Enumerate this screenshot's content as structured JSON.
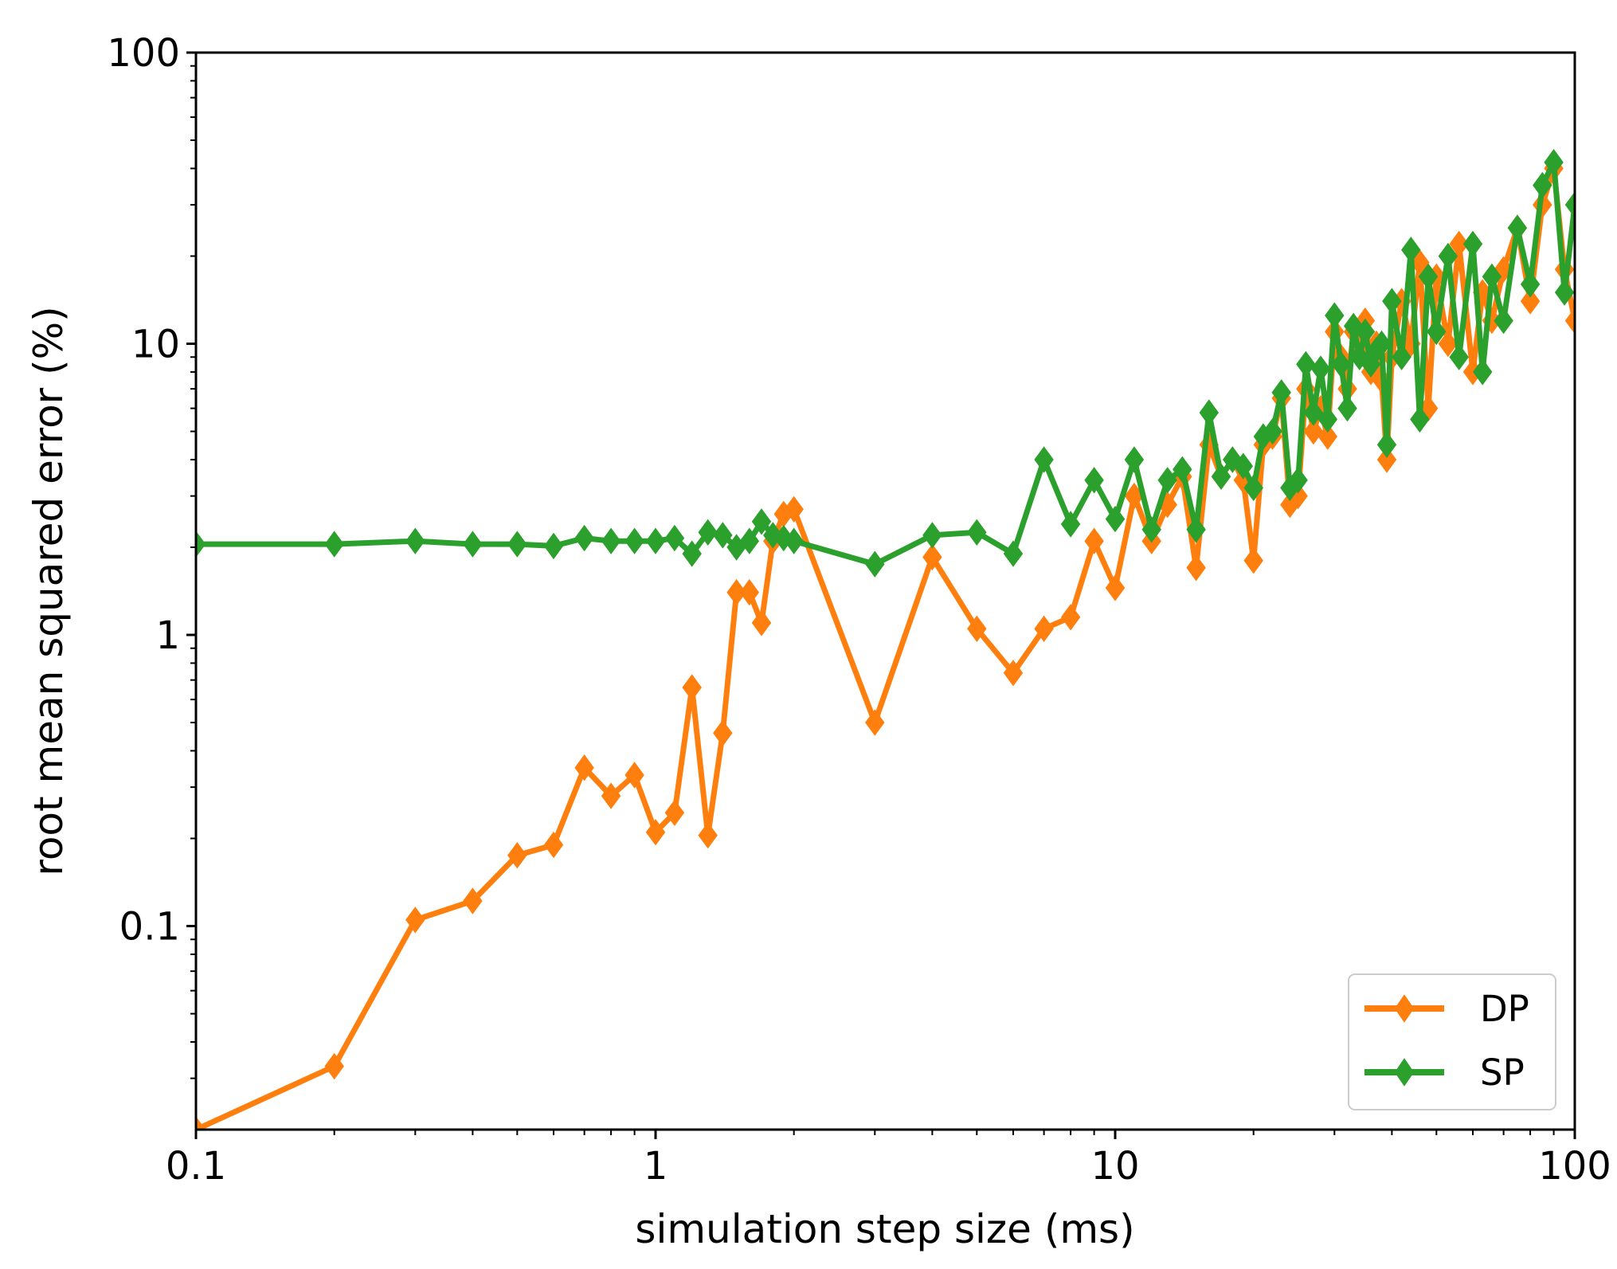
{
  "chart_data": {
    "type": "line",
    "xscale": "log",
    "yscale": "log",
    "xlabel": "simulation step size (ms)",
    "ylabel": "root mean squared error (%)",
    "xlim": [
      0.1,
      100
    ],
    "ylim": [
      0.02,
      100
    ],
    "xticks": [
      {
        "value": 0.1,
        "label": "0.1"
      },
      {
        "value": 1,
        "label": "1"
      },
      {
        "value": 10,
        "label": "10"
      },
      {
        "value": 100,
        "label": "100"
      }
    ],
    "yticks": [
      {
        "value": 0.1,
        "label": "0.1"
      },
      {
        "value": 1,
        "label": "1"
      },
      {
        "value": 10,
        "label": "10"
      },
      {
        "value": 100,
        "label": "100"
      }
    ],
    "legend_position": "lower-right",
    "series": [
      {
        "name": "DP",
        "color": "#ff7f0e",
        "marker": "diamond",
        "x": [
          0.1,
          0.2,
          0.3,
          0.4,
          0.5,
          0.6,
          0.7,
          0.8,
          0.9,
          1.0,
          1.1,
          1.2,
          1.3,
          1.4,
          1.5,
          1.6,
          1.7,
          1.8,
          1.9,
          2.0,
          3,
          4,
          5,
          6,
          7,
          8,
          9,
          10,
          11,
          12,
          13,
          14,
          15,
          16,
          17,
          18,
          19,
          20,
          21,
          22,
          23,
          24,
          25,
          26,
          27,
          28,
          29,
          30,
          31,
          32,
          33,
          34,
          35,
          36,
          37,
          38,
          39,
          40,
          42,
          44,
          46,
          48,
          50,
          53,
          56,
          60,
          63,
          66,
          70,
          75,
          80,
          85,
          90,
          95,
          100
        ],
        "values": [
          0.02,
          0.033,
          0.105,
          0.122,
          0.175,
          0.19,
          0.35,
          0.28,
          0.33,
          0.21,
          0.245,
          0.66,
          0.205,
          0.46,
          1.4,
          1.4,
          1.1,
          2.1,
          2.6,
          2.7,
          0.5,
          1.85,
          1.05,
          0.74,
          1.05,
          1.15,
          2.1,
          1.45,
          3.0,
          2.1,
          2.8,
          3.5,
          1.7,
          4.5,
          3.5,
          4.0,
          3.4,
          1.8,
          4.5,
          4.8,
          6.5,
          2.8,
          3.0,
          7.0,
          5.0,
          6.0,
          4.8,
          11.0,
          9.0,
          7.0,
          11.0,
          9.5,
          12.0,
          8.0,
          10.0,
          7.5,
          4.0,
          9.0,
          14.0,
          10.0,
          19.0,
          6.0,
          17.0,
          10.0,
          22.0,
          8.0,
          15.0,
          12.0,
          18.0,
          25.0,
          14.0,
          30.0,
          40.0,
          18.0,
          12.0
        ]
      },
      {
        "name": "SP",
        "color": "#2ca02c",
        "marker": "diamond",
        "x": [
          0.1,
          0.2,
          0.3,
          0.4,
          0.5,
          0.6,
          0.7,
          0.8,
          0.9,
          1.0,
          1.1,
          1.2,
          1.3,
          1.4,
          1.5,
          1.6,
          1.7,
          1.8,
          1.9,
          2.0,
          3,
          4,
          5,
          6,
          7,
          8,
          9,
          10,
          11,
          12,
          13,
          14,
          15,
          16,
          17,
          18,
          19,
          20,
          21,
          22,
          23,
          24,
          25,
          26,
          27,
          28,
          29,
          30,
          31,
          32,
          33,
          34,
          35,
          36,
          37,
          38,
          39,
          40,
          42,
          44,
          46,
          48,
          50,
          53,
          56,
          60,
          63,
          66,
          70,
          75,
          80,
          85,
          90,
          95,
          100
        ],
        "values": [
          2.05,
          2.05,
          2.1,
          2.05,
          2.05,
          2.02,
          2.15,
          2.1,
          2.1,
          2.1,
          2.15,
          1.9,
          2.25,
          2.2,
          2.0,
          2.1,
          2.45,
          2.2,
          2.15,
          2.1,
          1.75,
          2.2,
          2.25,
          1.9,
          4.0,
          2.4,
          3.4,
          2.5,
          4.0,
          2.3,
          3.4,
          3.7,
          2.3,
          5.8,
          3.5,
          4.0,
          3.8,
          3.2,
          4.8,
          5.0,
          6.8,
          3.2,
          3.4,
          8.5,
          5.8,
          8.2,
          5.5,
          12.5,
          8.5,
          6.0,
          11.5,
          9.0,
          11.0,
          8.5,
          9.5,
          10.0,
          4.5,
          14.0,
          9.0,
          21.0,
          5.5,
          17.0,
          11.0,
          20.0,
          9.0,
          22.0,
          8.0,
          17.0,
          12.0,
          25.0,
          16.0,
          35.0,
          42.0,
          15.0,
          30.0
        ]
      }
    ]
  }
}
